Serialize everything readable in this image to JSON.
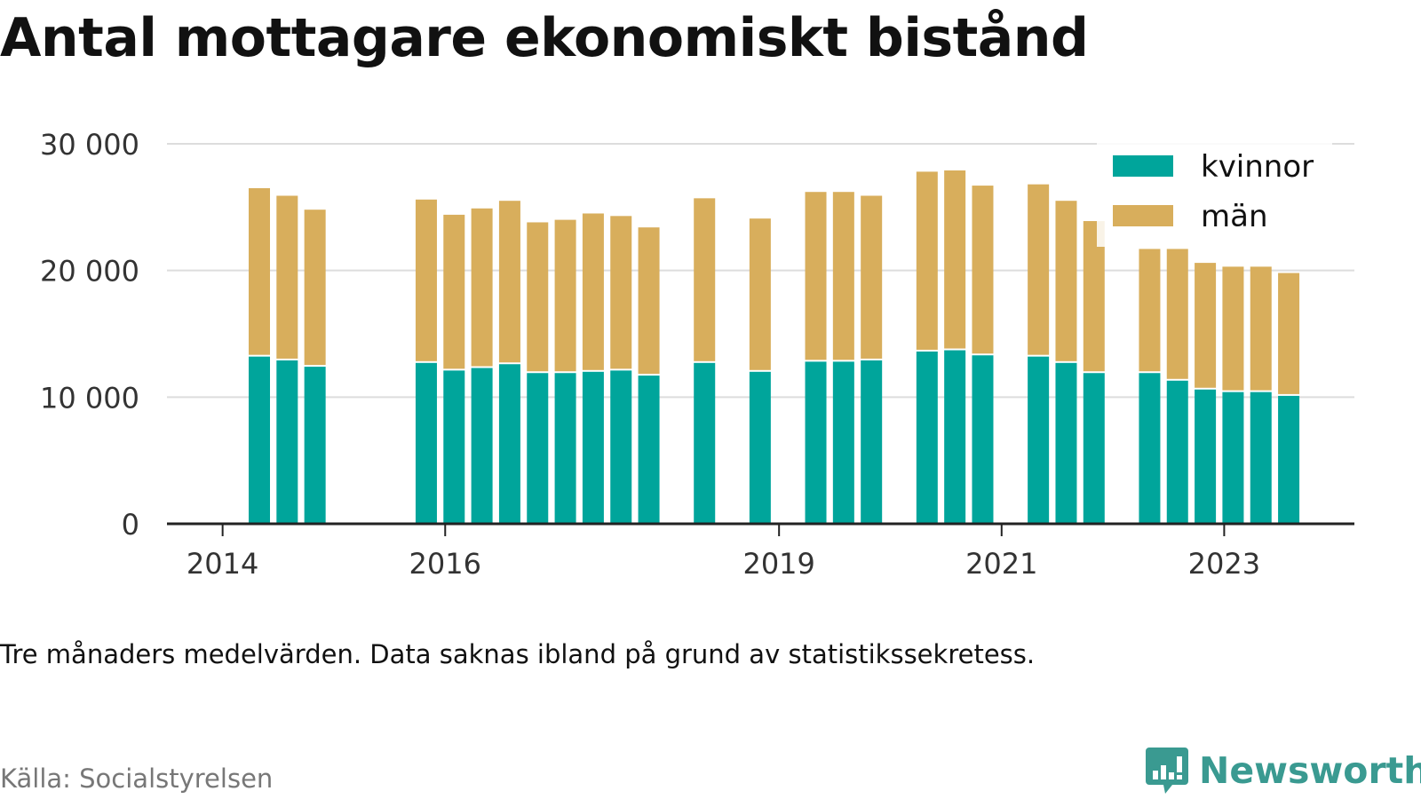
{
  "title": "Antal mottagare ekonomiskt bistånd",
  "note": "Tre månaders medelvärden. Data saknas ibland på grund av statistikssekretess.",
  "source": "Källa: Socialstyrelsen",
  "brand": {
    "name": "Newsworthy",
    "icon": "newsworthy-chart-bubble-icon",
    "color": "#3a9a91"
  },
  "colors": {
    "kvinnor": "#00a59b",
    "man": "#d8ae5c",
    "grid": "#dddddd",
    "axis": "#222222"
  },
  "chart_data": {
    "type": "bar",
    "stacked": true,
    "grid": true,
    "legend_position": "top-right",
    "ylim": [
      0,
      30000
    ],
    "y_ticks": [
      {
        "value": 0,
        "label": "0"
      },
      {
        "value": 10000,
        "label": "10 000"
      },
      {
        "value": 20000,
        "label": "20 000"
      },
      {
        "value": 30000,
        "label": "30 000"
      }
    ],
    "x_ticks": [
      {
        "x": 2014.0,
        "label": "2014"
      },
      {
        "x": 2016.0,
        "label": "2016"
      },
      {
        "x": 2019.0,
        "label": "2019"
      },
      {
        "x": 2021.0,
        "label": "2021"
      },
      {
        "x": 2023.0,
        "label": "2023"
      }
    ],
    "x_range": [
      2013.5,
      2024.17
    ],
    "x": [
      2014.33,
      2014.58,
      2014.83,
      2015.83,
      2016.08,
      2016.33,
      2016.58,
      2016.83,
      2017.08,
      2017.33,
      2017.58,
      2017.83,
      2018.33,
      2018.83,
      2019.33,
      2019.58,
      2019.83,
      2020.33,
      2020.58,
      2020.83,
      2021.33,
      2021.58,
      2021.83,
      2022.33,
      2022.58,
      2022.83,
      2023.08,
      2023.33,
      2023.58
    ],
    "series": [
      {
        "name": "kvinnor",
        "values": [
          13200,
          12900,
          12400,
          12700,
          12100,
          12300,
          12600,
          11900,
          11900,
          12000,
          12100,
          11700,
          12700,
          12000,
          12800,
          12800,
          12900,
          13600,
          13700,
          13300,
          13200,
          12700,
          11900,
          11900,
          11300,
          10600,
          10400,
          10400,
          10100
        ]
      },
      {
        "name": "män",
        "values": [
          13300,
          13000,
          12400,
          12900,
          12300,
          12600,
          12900,
          11900,
          12100,
          12500,
          12200,
          11700,
          13000,
          12100,
          13400,
          13400,
          13000,
          14200,
          14200,
          13400,
          13600,
          12800,
          12000,
          9800,
          10400,
          10000,
          9900,
          9900,
          9700
        ]
      }
    ]
  }
}
